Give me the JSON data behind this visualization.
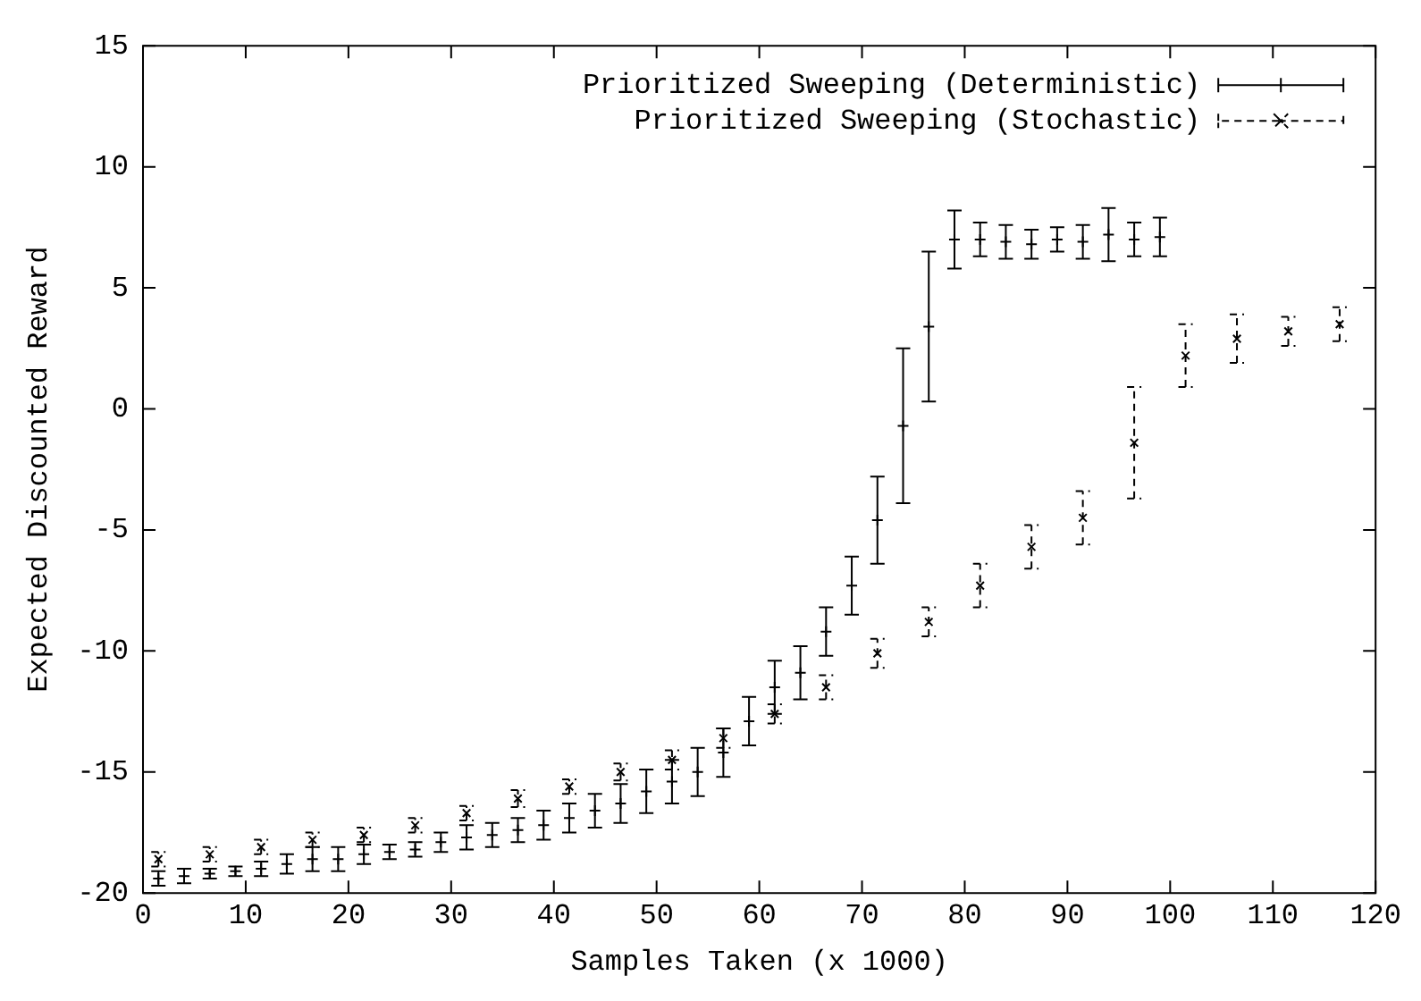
{
  "chart_data": {
    "type": "scatter",
    "xlabel": "Samples Taken (x 1000)",
    "ylabel": "Expected Discounted Reward",
    "xlim": [
      0,
      120
    ],
    "ylim": [
      -20,
      15
    ],
    "xticks": [
      0,
      10,
      20,
      30,
      40,
      50,
      60,
      70,
      80,
      90,
      100,
      110,
      120
    ],
    "yticks": [
      -20,
      -15,
      -10,
      -5,
      0,
      5,
      10,
      15
    ],
    "grid": false,
    "legend": "top right",
    "series": [
      {
        "name": "Prioritized Sweeping (Deterministic)",
        "color": "#000000",
        "marker": "plus",
        "line_style": "solid",
        "x": [
          1.5,
          4,
          6.5,
          9,
          11.5,
          14,
          16.5,
          19,
          21.5,
          24,
          26.5,
          29,
          31.5,
          34,
          36.5,
          39,
          41.5,
          44,
          46.5,
          49,
          51.5,
          54,
          56.5,
          59,
          61.5,
          64,
          66.5,
          69,
          71.5,
          74,
          76.5,
          79,
          81.5,
          84,
          86.5,
          89,
          91.5,
          94,
          96.5,
          99
        ],
        "values": [
          -19.4,
          -19.3,
          -19.2,
          -19.1,
          -19.0,
          -18.8,
          -18.6,
          -18.6,
          -18.4,
          -18.3,
          -18.2,
          -17.9,
          -17.7,
          -17.6,
          -17.4,
          -17.2,
          -16.9,
          -16.6,
          -16.3,
          -15.8,
          -15.4,
          -15.0,
          -14.2,
          -12.9,
          -11.5,
          -10.9,
          -9.2,
          -7.3,
          -4.6,
          -0.7,
          3.4,
          7.0,
          7.0,
          6.9,
          6.8,
          7.0,
          6.9,
          7.2,
          7.0,
          7.1
        ],
        "errors": [
          0.3,
          0.3,
          0.2,
          0.2,
          0.3,
          0.4,
          0.5,
          0.5,
          0.4,
          0.3,
          0.3,
          0.4,
          0.5,
          0.5,
          0.5,
          0.6,
          0.6,
          0.7,
          0.8,
          0.9,
          0.9,
          1.0,
          1.0,
          1.0,
          1.1,
          1.1,
          1.0,
          1.2,
          1.8,
          3.2,
          3.1,
          1.2,
          0.7,
          0.7,
          0.6,
          0.5,
          0.7,
          1.1,
          0.7,
          0.8
        ]
      },
      {
        "name": "Prioritized Sweeping (Stochastic)",
        "color": "#000000",
        "marker": "cross",
        "line_style": "dashed",
        "x": [
          1.5,
          6.5,
          11.5,
          16.5,
          21.5,
          26.5,
          31.5,
          36.5,
          41.5,
          46.5,
          51.5,
          56.5,
          61.5,
          66.5,
          71.5,
          76.5,
          81.5,
          86.5,
          91.5,
          96.5,
          101.5,
          106.5,
          111.5,
          116.5
        ],
        "values": [
          -18.6,
          -18.4,
          -18.1,
          -17.8,
          -17.6,
          -17.2,
          -16.7,
          -16.1,
          -15.6,
          -15.0,
          -14.5,
          -13.6,
          -12.6,
          -11.5,
          -10.1,
          -8.8,
          -7.3,
          -5.7,
          -4.5,
          -1.4,
          2.2,
          2.9,
          3.2,
          3.5
        ],
        "errors": [
          0.3,
          0.3,
          0.3,
          0.3,
          0.3,
          0.3,
          0.3,
          0.35,
          0.3,
          0.35,
          0.4,
          0.4,
          0.4,
          0.5,
          0.6,
          0.6,
          0.9,
          0.9,
          1.1,
          2.3,
          1.3,
          1.0,
          0.6,
          0.7
        ]
      }
    ]
  }
}
